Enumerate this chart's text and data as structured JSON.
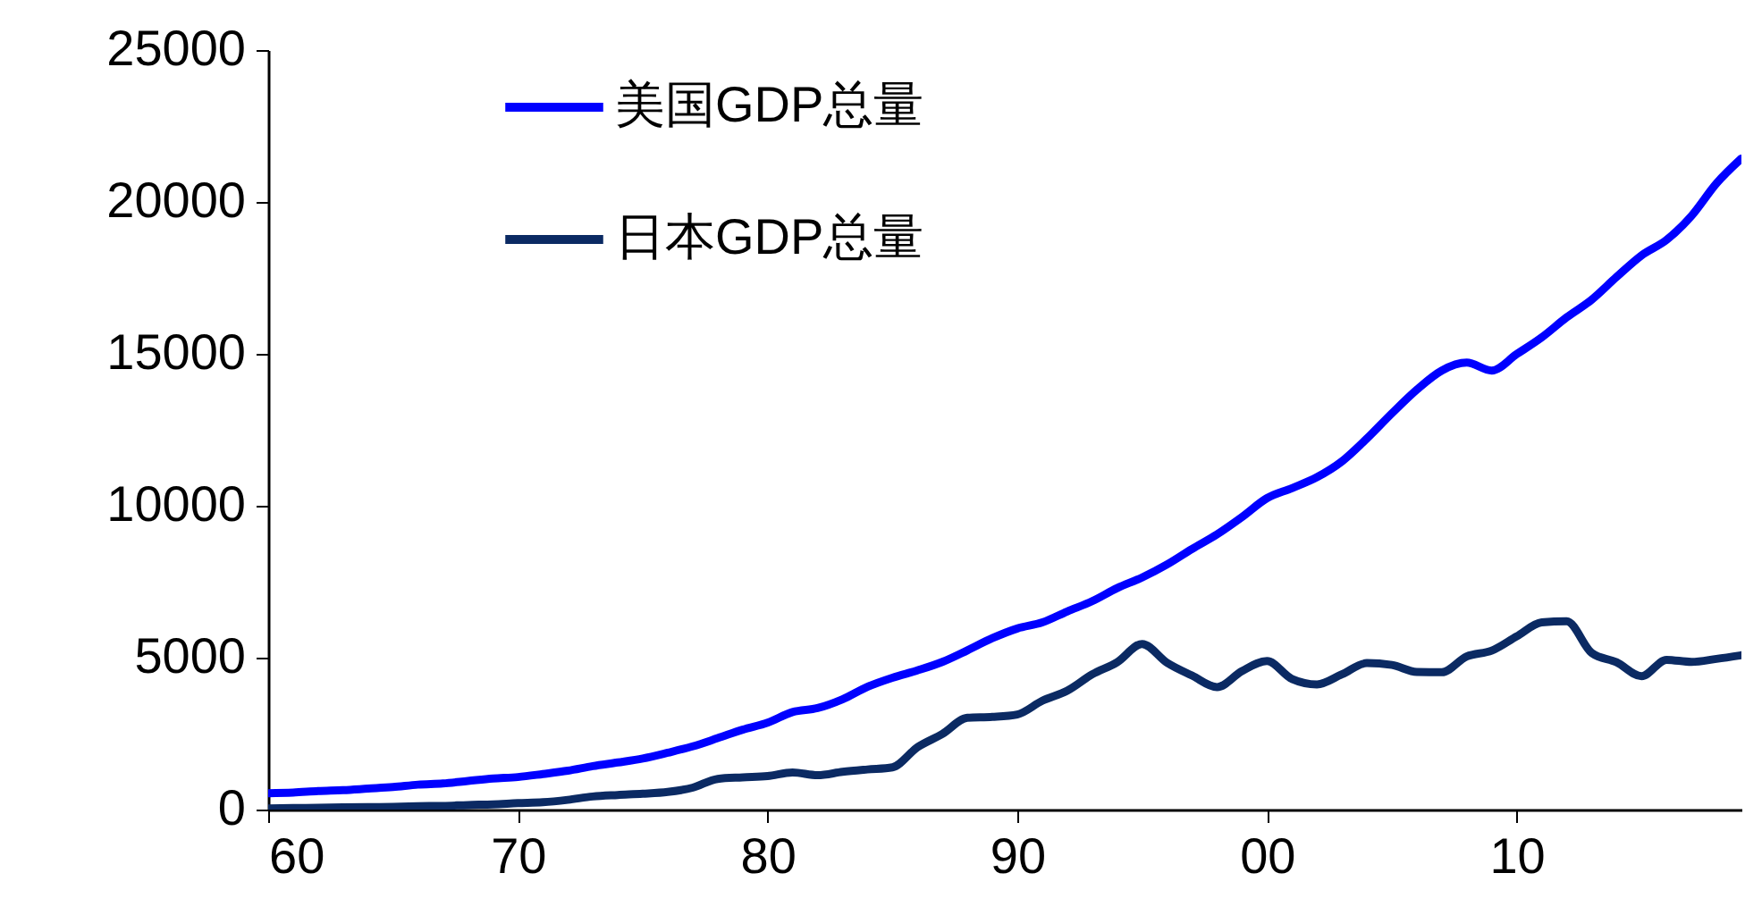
{
  "chart_data": {
    "type": "line",
    "x": [
      1960,
      1961,
      1962,
      1963,
      1964,
      1965,
      1966,
      1967,
      1968,
      1969,
      1970,
      1971,
      1972,
      1973,
      1974,
      1975,
      1976,
      1977,
      1978,
      1979,
      1980,
      1981,
      1982,
      1983,
      1984,
      1985,
      1986,
      1987,
      1988,
      1989,
      1990,
      1991,
      1992,
      1993,
      1994,
      1995,
      1996,
      1997,
      1998,
      1999,
      2000,
      2001,
      2002,
      2003,
      2004,
      2005,
      2006,
      2007,
      2008,
      2009,
      2010,
      2011,
      2012,
      2013,
      2014,
      2015,
      2016,
      2017,
      2018,
      2019
    ],
    "series": [
      {
        "name": "美国GDP总量",
        "color": "#0000ff",
        "values": [
          540,
          560,
          610,
          640,
          690,
          740,
          820,
          860,
          940,
          1020,
          1070,
          1170,
          1280,
          1430,
          1550,
          1680,
          1870,
          2080,
          2350,
          2630,
          2860,
          3210,
          3340,
          3630,
          4040,
          4340,
          4580,
          4860,
          5240,
          5640,
          5960,
          6160,
          6520,
          6860,
          7290,
          7640,
          8070,
          8580,
          9060,
          9630,
          10250,
          10580,
          10940,
          11460,
          12210,
          13040,
          13820,
          14450,
          14710,
          14450,
          14990,
          15540,
          16200,
          16780,
          17530,
          18240,
          18750,
          19540,
          20610,
          21430
        ]
      },
      {
        "name": "日本GDP总量",
        "color": "#0b2a63",
        "values": [
          40,
          50,
          60,
          70,
          80,
          90,
          110,
          120,
          150,
          170,
          210,
          240,
          320,
          430,
          480,
          520,
          580,
          720,
          1010,
          1060,
          1100,
          1220,
          1130,
          1240,
          1320,
          1390,
          2050,
          2490,
          3020,
          3050,
          3130,
          3580,
          3910,
          4450,
          4850,
          5450,
          4830,
          4410,
          4030,
          4560,
          4890,
          4300,
          4120,
          4450,
          4820,
          4760,
          4530,
          4520,
          5040,
          5230,
          5700,
          6160,
          6200,
          5160,
          4850,
          4390,
          4930,
          4860,
          4960,
          5080
        ]
      }
    ],
    "xlim": [
      1960,
      2019
    ],
    "xticks": [
      {
        "value": 1960,
        "label": "60"
      },
      {
        "value": 1970,
        "label": "70"
      },
      {
        "value": 1980,
        "label": "80"
      },
      {
        "value": 1990,
        "label": "90"
      },
      {
        "value": 2000,
        "label": "00"
      },
      {
        "value": 2010,
        "label": "10"
      }
    ],
    "ylim": [
      0,
      25000
    ],
    "yticks": [
      0,
      5000,
      10000,
      15000,
      20000,
      25000
    ],
    "legend": "top left",
    "grid": false
  }
}
